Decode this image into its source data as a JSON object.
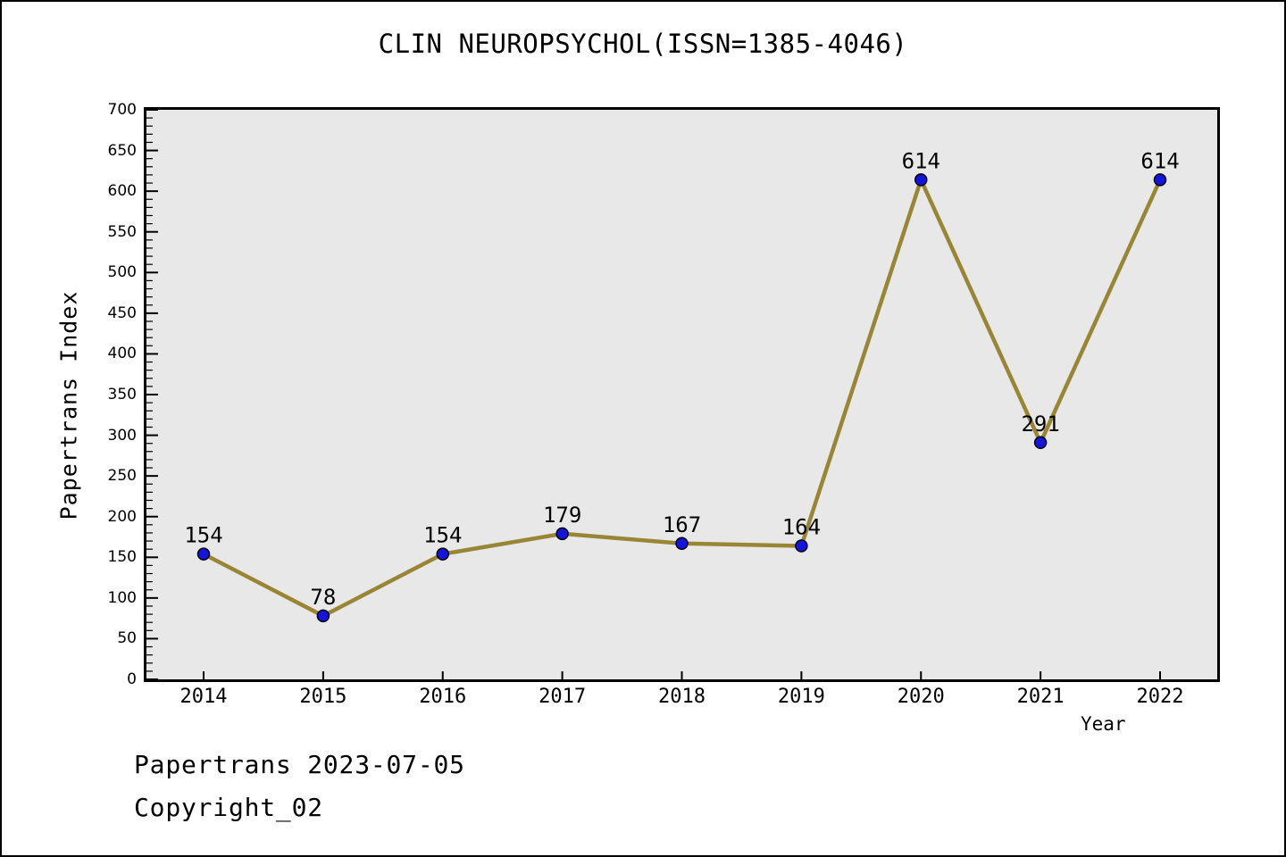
{
  "chart_data": {
    "type": "line",
    "title": "CLIN NEUROPSYCHOL(ISSN=1385-4046)",
    "xlabel": "Year",
    "ylabel": "Papertrans Index",
    "categories": [
      "2014",
      "2015",
      "2016",
      "2017",
      "2018",
      "2019",
      "2020",
      "2021",
      "2022"
    ],
    "values": [
      154,
      78,
      154,
      179,
      167,
      164,
      614,
      291,
      614
    ],
    "ylim": [
      0,
      700
    ],
    "ytick_step": 50,
    "ytick_minor_step": 10,
    "grid": false,
    "legend_position": "none",
    "line_color": "#988634",
    "marker_color": "#1414dd",
    "marker_edge_color": "#000000",
    "plot_bg_color": "#e8e8e8",
    "axis_color": "#000000"
  },
  "footer": {
    "line1": "Papertrans 2023-07-05",
    "line2": "Copyright_02"
  }
}
